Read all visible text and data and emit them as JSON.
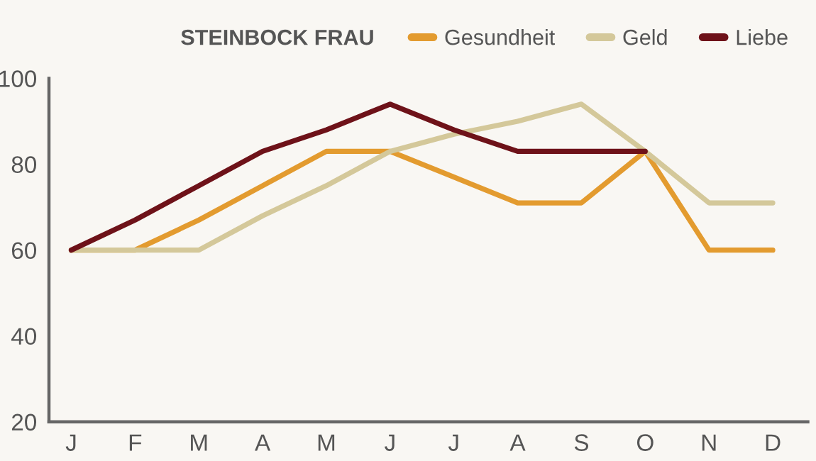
{
  "chart_data": {
    "type": "line",
    "title": "STEINBOCK FRAU",
    "categories": [
      "J",
      "F",
      "M",
      "A",
      "M",
      "J",
      "J",
      "A",
      "S",
      "O",
      "N",
      "D"
    ],
    "series": [
      {
        "name": "Gesundheit",
        "color": "#e39b2f",
        "values": [
          60,
          60,
          67,
          75,
          83,
          83,
          77,
          71,
          71,
          83,
          60,
          60
        ]
      },
      {
        "name": "Geld",
        "color": "#d4c89a",
        "values": [
          60,
          60,
          60,
          68,
          75,
          83,
          87,
          90,
          94,
          83,
          71,
          71
        ]
      },
      {
        "name": "Liebe",
        "color": "#6e1219",
        "values": [
          60,
          67,
          75,
          83,
          88,
          94,
          88,
          83,
          83,
          83,
          null,
          null
        ]
      }
    ],
    "ylim": [
      20,
      100
    ],
    "yticks": [
      20,
      40,
      60,
      80,
      100
    ],
    "grid": false,
    "legend": "top right",
    "line_style": "solid",
    "marker": "none"
  }
}
